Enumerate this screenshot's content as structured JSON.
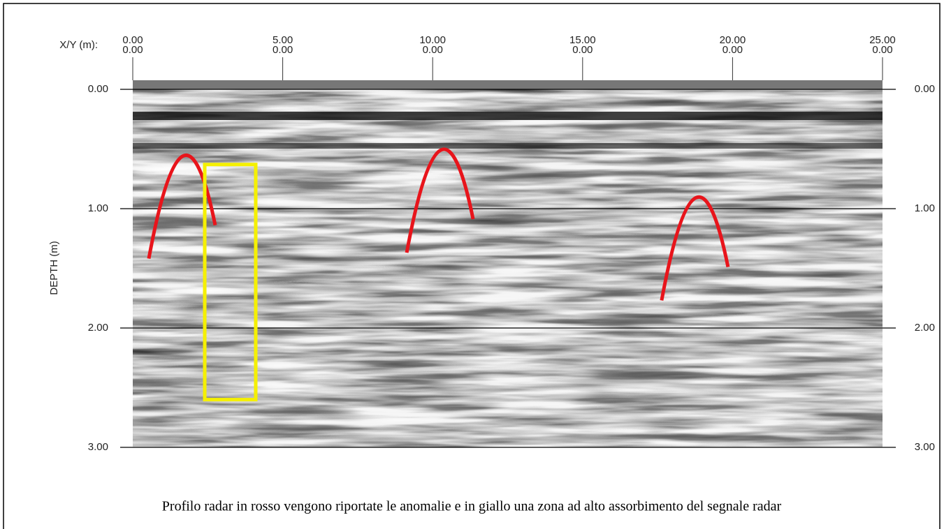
{
  "chart_data": {
    "type": "radargram",
    "x_axis_label": "X/Y (m):",
    "y_axis_label": "DEPTH (m)",
    "xlim": [
      0,
      25
    ],
    "xticks": [
      {
        "value": 0,
        "label": "0.00"
      },
      {
        "value": 5,
        "label": "5.00"
      },
      {
        "value": 10,
        "label": "10.00"
      },
      {
        "value": 15,
        "label": "15.00"
      },
      {
        "value": 20,
        "label": "20.00"
      },
      {
        "value": 25,
        "label": "25.00"
      }
    ],
    "y_coordinate_labels": [
      "0.00",
      "0.00",
      "0.00",
      "0.00",
      "0.00",
      "0.00"
    ],
    "ylim": [
      0,
      3
    ],
    "yticks": [
      {
        "value": 0,
        "label": "0.00"
      },
      {
        "value": 1,
        "label": "1.00"
      },
      {
        "value": 2,
        "label": "2.00"
      },
      {
        "value": 3,
        "label": "3.00"
      }
    ],
    "anomalies": [
      {
        "x": 1.7,
        "depth": 0.6
      },
      {
        "x": 10.3,
        "depth": 0.55
      },
      {
        "x": 18.8,
        "depth": 0.95
      }
    ],
    "anomaly_color": "#e8141b",
    "absorption_zone": {
      "x": [
        2.4,
        4.1
      ],
      "depth": [
        0.63,
        2.6
      ]
    },
    "absorption_color": "#f5f000",
    "caption": "Profilo radar in rosso vengono riportate le anomalie e in giallo una zona ad alto assorbimento del segnale radar"
  }
}
